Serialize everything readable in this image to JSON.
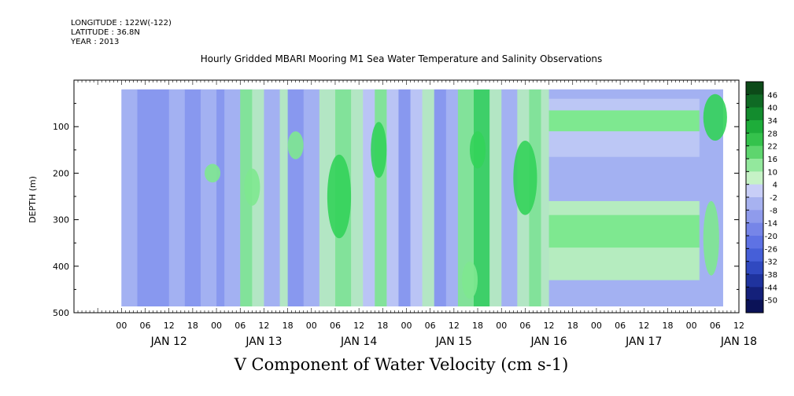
{
  "header": {
    "longitude": "LONGITUDE : 122W(-122)",
    "latitude": "LATITUDE : 36.8N",
    "year": "YEAR : 2013"
  },
  "chart_data": {
    "type": "heatmap",
    "title": "Hourly Gridded MBARI Mooring M1 Sea Water Temperature and Salinity Observations",
    "xlabel": "V Component of Water Velocity (cm s-1)",
    "ylabel": "DEPTH (m)",
    "ylim": [
      500,
      0
    ],
    "yticks": [
      100,
      200,
      300,
      400,
      500
    ],
    "x_hour_labels": [
      "00",
      "06",
      "12",
      "18",
      "00",
      "06",
      "12",
      "18",
      "00",
      "06",
      "12",
      "18",
      "00",
      "06",
      "12",
      "18",
      "00",
      "06",
      "12",
      "18",
      "00",
      "06",
      "12",
      "18",
      "00",
      "06",
      "12"
    ],
    "x_day_labels": [
      "JAN 12",
      "JAN 13",
      "JAN 14",
      "JAN 15",
      "JAN 16",
      "JAN 17",
      "JAN 18"
    ],
    "x_range_hours": [
      -12,
      156
    ],
    "colorbar": {
      "levels": [
        46,
        40,
        34,
        28,
        22,
        16,
        10,
        4,
        -2,
        -8,
        -14,
        -20,
        -26,
        -32,
        -38,
        -44,
        -50
      ],
      "colors": [
        "#0c4a18",
        "#0f6a24",
        "#138c2e",
        "#1ead3a",
        "#35c24c",
        "#5ed56e",
        "#93e89d",
        "#c6f2c6",
        "#c8cef7",
        "#a7b2f0",
        "#8f9bec",
        "#7685e8",
        "#5e72e4",
        "#465fd8",
        "#3049c0",
        "#1f339e",
        "#14207a",
        "#0b1257"
      ]
    },
    "data_extent": {
      "x_hours": [
        0,
        152
      ],
      "depth_m": [
        20,
        490
      ]
    },
    "palette_used": {
      "pos_hi": "#33d35a",
      "pos_mid": "#7ee890",
      "pos_lo": "#b5ecbf",
      "neg_lo": "#bcc7f5",
      "neg_mid": "#a3b1f2",
      "neg_hi": "#8596ee",
      "neg_max": "#6d82ea"
    },
    "bands_after_jan16": [
      {
        "depth": [
          20,
          40
        ],
        "value": -6
      },
      {
        "depth": [
          40,
          65
        ],
        "value": 0
      },
      {
        "depth": [
          65,
          110
        ],
        "value": 12
      },
      {
        "depth": [
          110,
          135
        ],
        "value": 1
      },
      {
        "depth": [
          135,
          165
        ],
        "value": -3
      },
      {
        "depth": [
          165,
          260
        ],
        "value": -6
      },
      {
        "depth": [
          260,
          290
        ],
        "value": 4
      },
      {
        "depth": [
          290,
          360
        ],
        "value": 10
      },
      {
        "depth": [
          360,
          430
        ],
        "value": 4
      },
      {
        "depth": [
          430,
          490
        ],
        "value": -6
      }
    ],
    "columns": [
      {
        "x": [
          0,
          4
        ],
        "v": -8
      },
      {
        "x": [
          4,
          8
        ],
        "v": -12
      },
      {
        "x": [
          8,
          12
        ],
        "v": -10
      },
      {
        "x": [
          12,
          16
        ],
        "v": -6
      },
      {
        "x": [
          16,
          20
        ],
        "v": -11
      },
      {
        "x": [
          20,
          24
        ],
        "v": -7
      },
      {
        "x": [
          24,
          26
        ],
        "v": -12
      },
      {
        "x": [
          26,
          30
        ],
        "v": -5
      },
      {
        "x": [
          30,
          33
        ],
        "v": 8
      },
      {
        "x": [
          33,
          36
        ],
        "v": 3
      },
      {
        "x": [
          36,
          40
        ],
        "v": -6
      },
      {
        "x": [
          40,
          42
        ],
        "v": 5
      },
      {
        "x": [
          42,
          46
        ],
        "v": -9
      },
      {
        "x": [
          46,
          50
        ],
        "v": -5
      },
      {
        "x": [
          50,
          54
        ],
        "v": 3
      },
      {
        "x": [
          54,
          58
        ],
        "v": 12
      },
      {
        "x": [
          58,
          61
        ],
        "v": 7
      },
      {
        "x": [
          61,
          64
        ],
        "v": -4
      },
      {
        "x": [
          64,
          67
        ],
        "v": 14
      },
      {
        "x": [
          67,
          70
        ],
        "v": -3
      },
      {
        "x": [
          70,
          73
        ],
        "v": -12
      },
      {
        "x": [
          73,
          76
        ],
        "v": -4
      },
      {
        "x": [
          76,
          79
        ],
        "v": 5
      },
      {
        "x": [
          79,
          82
        ],
        "v": -9
      },
      {
        "x": [
          82,
          85
        ],
        "v": -6
      },
      {
        "x": [
          85,
          89
        ],
        "v": 8
      },
      {
        "x": [
          89,
          93
        ],
        "v": 16
      },
      {
        "x": [
          93,
          96
        ],
        "v": 6
      },
      {
        "x": [
          96,
          100
        ],
        "v": -8
      },
      {
        "x": [
          100,
          103
        ],
        "v": 7
      },
      {
        "x": [
          103,
          106
        ],
        "v": 14
      },
      {
        "x": [
          106,
          108
        ],
        "v": 5
      }
    ],
    "blobs": [
      {
        "x": 33,
        "depth": 230,
        "rx": 2,
        "ry": 40,
        "v": 14
      },
      {
        "x": 55,
        "depth": 250,
        "rx": 3,
        "ry": 90,
        "v": 18
      },
      {
        "x": 65,
        "depth": 150,
        "rx": 2,
        "ry": 60,
        "v": 20
      },
      {
        "x": 90,
        "depth": 150,
        "rx": 2,
        "ry": 40,
        "v": 24
      },
      {
        "x": 102,
        "depth": 210,
        "rx": 3,
        "ry": 80,
        "v": 22
      },
      {
        "x": 150,
        "depth": 80,
        "rx": 3,
        "ry": 50,
        "v": 20
      },
      {
        "x": 149,
        "depth": 340,
        "rx": 2,
        "ry": 80,
        "v": 10
      },
      {
        "x": 23,
        "depth": 200,
        "rx": 2,
        "ry": 20,
        "v": 12
      },
      {
        "x": 44,
        "depth": 140,
        "rx": 2,
        "ry": 30,
        "v": 12
      },
      {
        "x": 88,
        "depth": 430,
        "rx": 2,
        "ry": 40,
        "v": 14
      }
    ]
  }
}
